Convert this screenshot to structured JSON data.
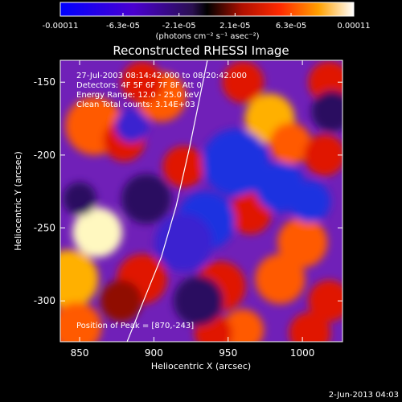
{
  "chart_data": {
    "type": "heatmap",
    "title": "Reconstructed RHESSI Image",
    "xlabel": "Heliocentric X (arcsec)",
    "ylabel": "Heliocentric Y (arcsec)",
    "xlim": [
      837,
      1027
    ],
    "ylim": [
      -328,
      -135
    ],
    "x_ticks": [
      850,
      900,
      950,
      1000
    ],
    "x_tick_labels": [
      "850",
      "900",
      "950",
      "1000"
    ],
    "y_ticks": [
      -150,
      -200,
      -250,
      -300
    ],
    "y_tick_labels": [
      "-150",
      "-200",
      "-250",
      "-300"
    ],
    "colorbar": {
      "range": [
        -0.00011,
        0.00011
      ],
      "ticks": [
        -0.00011,
        -6.3e-05,
        -2.1e-05,
        2.1e-05,
        6.3e-05,
        0.00011
      ],
      "tick_labels": [
        "-0.00011",
        "-6.3e-05",
        "-2.1e-05",
        "2.1e-05",
        "6.3e-05",
        "0.00011"
      ],
      "units_label": "(photons cm⁻² s⁻¹ asec⁻²)"
    },
    "annotations": {
      "time_range": "27-Jul-2003 08:14:42.000 to 08:20:42.000",
      "detectors": "Detectors: 4F 5F 6F 7F 8F  Att 0",
      "energy": "Energy Range: 12.0 - 25.0 keV",
      "method": "Clean    Total counts: 3.14E+03",
      "peak": "Position of Peak = [870,-243]"
    },
    "limb_curve": [
      [
        882,
        -328
      ],
      [
        893,
        -300
      ],
      [
        905,
        -270
      ],
      [
        915,
        -235
      ],
      [
        924,
        -195
      ],
      [
        931,
        -160
      ],
      [
        936,
        -135
      ]
    ],
    "blobs": [
      {
        "x": 862,
        "y": -253,
        "v": 1.0,
        "s": 12
      },
      {
        "x": 843,
        "y": -285,
        "v": 0.75,
        "s": 14
      },
      {
        "x": 848,
        "y": -318,
        "v": 0.55,
        "s": 12
      },
      {
        "x": 860,
        "y": -180,
        "v": 0.65,
        "s": 14
      },
      {
        "x": 880,
        "y": -190,
        "v": 0.45,
        "s": 10
      },
      {
        "x": 905,
        "y": -160,
        "v": 0.55,
        "s": 12
      },
      {
        "x": 892,
        "y": -150,
        "v": 0.35,
        "s": 10
      },
      {
        "x": 920,
        "y": -208,
        "v": 0.4,
        "s": 10
      },
      {
        "x": 892,
        "y": -285,
        "v": 0.4,
        "s": 12
      },
      {
        "x": 878,
        "y": -300,
        "v": 0.3,
        "s": 10
      },
      {
        "x": 978,
        "y": -175,
        "v": 0.7,
        "s": 12
      },
      {
        "x": 992,
        "y": -192,
        "v": 0.55,
        "s": 10
      },
      {
        "x": 960,
        "y": -150,
        "v": 0.45,
        "s": 10
      },
      {
        "x": 1018,
        "y": -150,
        "v": 0.4,
        "s": 10
      },
      {
        "x": 1015,
        "y": -200,
        "v": 0.45,
        "s": 10
      },
      {
        "x": 965,
        "y": -240,
        "v": 0.35,
        "s": 10
      },
      {
        "x": 945,
        "y": -290,
        "v": 0.45,
        "s": 12
      },
      {
        "x": 1000,
        "y": -260,
        "v": 0.55,
        "s": 12
      },
      {
        "x": 985,
        "y": -285,
        "v": 0.5,
        "s": 12
      },
      {
        "x": 1018,
        "y": -300,
        "v": 0.45,
        "s": 10
      },
      {
        "x": 960,
        "y": -320,
        "v": 0.65,
        "s": 10
      },
      {
        "x": 940,
        "y": -322,
        "v": 0.45,
        "s": 9
      },
      {
        "x": 1005,
        "y": -322,
        "v": 0.4,
        "s": 10
      },
      {
        "x": 955,
        "y": -205,
        "v": -0.45,
        "s": 16
      },
      {
        "x": 935,
        "y": -245,
        "v": -0.4,
        "s": 14
      },
      {
        "x": 985,
        "y": -222,
        "v": -0.4,
        "s": 12
      },
      {
        "x": 1005,
        "y": -232,
        "v": -0.45,
        "s": 10
      },
      {
        "x": 920,
        "y": -260,
        "v": -0.3,
        "s": 14
      },
      {
        "x": 895,
        "y": -230,
        "v": -0.25,
        "s": 12
      },
      {
        "x": 930,
        "y": -300,
        "v": -0.2,
        "s": 12
      },
      {
        "x": 1020,
        "y": -170,
        "v": -0.25,
        "s": 10
      },
      {
        "x": 885,
        "y": -180,
        "v": -0.3,
        "s": 8
      },
      {
        "x": 850,
        "y": -230,
        "v": -0.25,
        "s": 8
      }
    ]
  },
  "footer": {
    "date": "2-Jun-2013 04:03"
  }
}
